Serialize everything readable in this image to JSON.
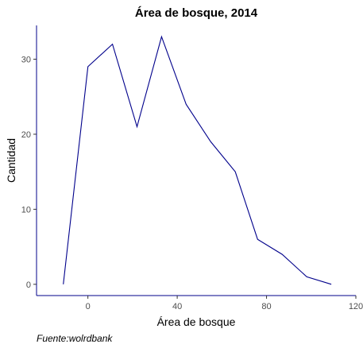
{
  "chart_data": {
    "type": "line",
    "title": "Área de bosque, 2014",
    "xlabel": "Área de bosque",
    "ylabel": "Cantidad",
    "caption": "Fuente:wolrdbank",
    "x": [
      -11,
      0,
      11,
      22,
      33,
      44,
      55,
      66,
      76,
      87,
      98,
      109
    ],
    "series": [
      {
        "values": [
          0,
          29,
          32,
          21,
          33,
          24,
          19,
          15,
          6,
          4,
          1,
          0
        ]
      }
    ],
    "xlim": [
      -23,
      120
    ],
    "ylim": [
      -1.5,
      34.5
    ],
    "xticks": [
      0,
      40,
      80,
      120
    ],
    "yticks": [
      0,
      10,
      20,
      30
    ],
    "grid": false,
    "colors": {
      "line": "#00008B",
      "axis": "#00008B",
      "tick_text": "#4d4d4d"
    }
  }
}
